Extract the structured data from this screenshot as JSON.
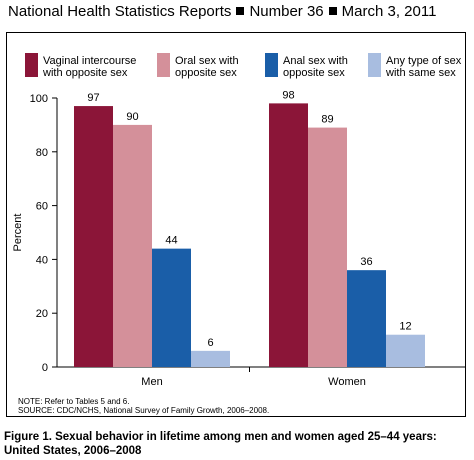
{
  "header": {
    "report": "National Health Statistics Reports",
    "number": "Number 36",
    "date": "March 3, 2011"
  },
  "chart_data": {
    "type": "bar",
    "categories": [
      "Men",
      "Women"
    ],
    "series": [
      {
        "name": "Vaginal intercourse with opposite sex",
        "name_lines": [
          "Vaginal intercourse",
          "with opposite sex"
        ],
        "color": "#8b1538",
        "values": [
          97,
          98
        ]
      },
      {
        "name": "Oral sex with opposite sex",
        "name_lines": [
          "Oral sex with",
          "opposite sex"
        ],
        "color": "#d4909a",
        "values": [
          90,
          89
        ]
      },
      {
        "name": "Anal sex with opposite sex",
        "name_lines": [
          "Anal sex with",
          "opposite sex"
        ],
        "color": "#1a5ea8",
        "values": [
          44,
          36
        ]
      },
      {
        "name": "Any type of sex with same sex",
        "name_lines": [
          "Any type of sex",
          "with same sex"
        ],
        "color": "#a8bde0",
        "values": [
          6,
          12
        ]
      }
    ],
    "ylabel": "Percent",
    "xlabel": "",
    "ylim": [
      0,
      100
    ],
    "yticks": [
      0,
      20,
      40,
      60,
      80,
      100
    ],
    "legend_position": "top",
    "grid": false
  },
  "notes": {
    "line1": "NOTE: Refer to Tables 5 and 6.",
    "line2": "SOURCE: CDC/NCHS, National Survey of Family Growth, 2006–2008."
  },
  "caption": {
    "text": "Figure 1. Sexual behavior in lifetime among men and women aged 25–44 years: United States, 2006–2008"
  }
}
